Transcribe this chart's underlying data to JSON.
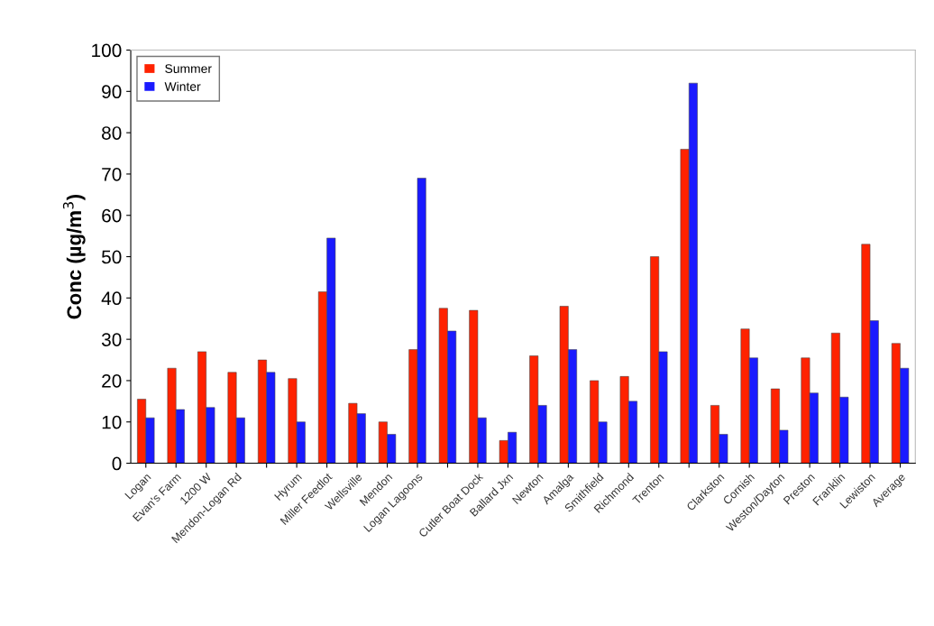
{
  "chart_data": {
    "type": "bar",
    "ylabel": "Conc (µg/m$^{3}$)",
    "categories": [
      "Logan",
      "Evan's Farm",
      "1200 W",
      "Mendon-Logan Rd",
      null,
      "Hyrum",
      "Miller Feedlot",
      "Wellsville",
      "Mendon",
      "Logan Lagoons",
      null,
      "Cutler Boat Dock",
      "Ballard Jxn",
      "Newton",
      "Amalga",
      "Smithfield",
      "Richmond",
      "Trenton",
      null,
      "Clarkston",
      "Cornish",
      "Weston/Dayton",
      "Preston",
      "Franklin",
      "Lewiston",
      "Average"
    ],
    "series": [
      {
        "name": "Summer",
        "color": "#ff2200",
        "values": [
          15.5,
          23,
          27,
          22,
          25,
          20.5,
          41.5,
          14.5,
          10,
          27.5,
          37.5,
          37,
          5.5,
          26,
          38,
          20,
          21,
          50,
          76,
          14,
          32.5,
          18,
          25.5,
          31.5,
          53,
          29
        ]
      },
      {
        "name": "Winter",
        "color": "#1a1aff",
        "values": [
          11,
          13,
          13.5,
          11,
          22,
          10,
          54.5,
          12,
          7,
          69,
          32,
          11,
          7.5,
          14,
          27.5,
          10,
          15,
          27,
          92,
          7,
          25.5,
          8,
          17,
          16,
          34.5,
          23
        ]
      }
    ],
    "ylim": [
      0,
      100
    ],
    "yticks": [
      0,
      10,
      20,
      30,
      40,
      50,
      60,
      70,
      80,
      90,
      100
    ],
    "legend": "top left",
    "grid": false
  }
}
